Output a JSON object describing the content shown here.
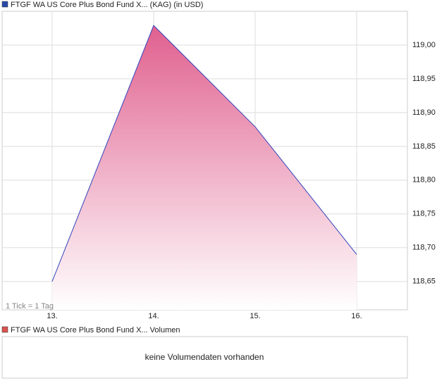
{
  "chart_data": {
    "type": "area",
    "title": "FTGF WA US Core Plus Bond Fund X... (KAG) (in USD)",
    "note": "1 Tick = 1 Tag",
    "categories": [
      "13.",
      "14.",
      "15.",
      "16."
    ],
    "series": [
      {
        "name": "FTGF WA US Core Plus Bond Fund X... (KAG) (in USD)",
        "color": "#3344bb",
        "values": [
          118.65,
          119.029,
          118.879,
          118.69
        ]
      }
    ],
    "fill_color": "#e0608e",
    "ylim": [
      118.608,
      119.05
    ],
    "yticks": [
      {
        "value": 118.65,
        "label": "118,65"
      },
      {
        "value": 118.7,
        "label": "118,70"
      },
      {
        "value": 118.75,
        "label": "118,75"
      },
      {
        "value": 118.8,
        "label": "118,80"
      },
      {
        "value": 118.85,
        "label": "118,85"
      },
      {
        "value": 118.9,
        "label": "118,90"
      },
      {
        "value": 118.95,
        "label": "118,95"
      },
      {
        "value": 119.0,
        "label": "119,00"
      }
    ],
    "grid": true
  },
  "volume_panel": {
    "title": "FTGF WA US Core Plus Bond Fund X... Volumen",
    "color": "#d9534f",
    "message": "keine Volumendaten vorhanden"
  }
}
